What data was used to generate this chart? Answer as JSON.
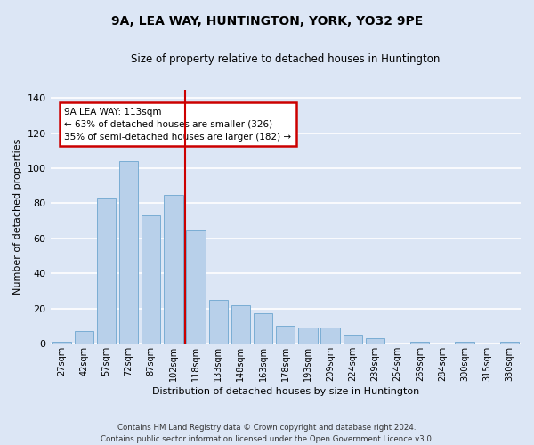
{
  "title": "9A, LEA WAY, HUNTINGTON, YORK, YO32 9PE",
  "subtitle": "Size of property relative to detached houses in Huntington",
  "xlabel": "Distribution of detached houses by size in Huntington",
  "ylabel": "Number of detached properties",
  "categories": [
    "27sqm",
    "42sqm",
    "57sqm",
    "72sqm",
    "87sqm",
    "102sqm",
    "118sqm",
    "133sqm",
    "148sqm",
    "163sqm",
    "178sqm",
    "193sqm",
    "209sqm",
    "224sqm",
    "239sqm",
    "254sqm",
    "269sqm",
    "284sqm",
    "300sqm",
    "315sqm",
    "330sqm"
  ],
  "values": [
    1,
    7,
    83,
    104,
    73,
    85,
    65,
    25,
    22,
    17,
    10,
    9,
    9,
    5,
    3,
    0,
    1,
    0,
    1,
    0,
    1
  ],
  "bar_color": "#b8d0ea",
  "bar_edge_color": "#7aadd4",
  "plot_bg_color": "#dce6f5",
  "fig_bg_color": "#dce6f5",
  "grid_color": "#ffffff",
  "vline_color": "#cc0000",
  "annotation_text": "9A LEA WAY: 113sqm\n← 63% of detached houses are smaller (326)\n35% of semi-detached houses are larger (182) →",
  "annotation_box_color": "#ffffff",
  "annotation_border_color": "#cc0000",
  "footer_text": "Contains HM Land Registry data © Crown copyright and database right 2024.\nContains public sector information licensed under the Open Government Licence v3.0.",
  "ylim": [
    0,
    145
  ],
  "yticks": [
    0,
    20,
    40,
    60,
    80,
    100,
    120,
    140
  ]
}
